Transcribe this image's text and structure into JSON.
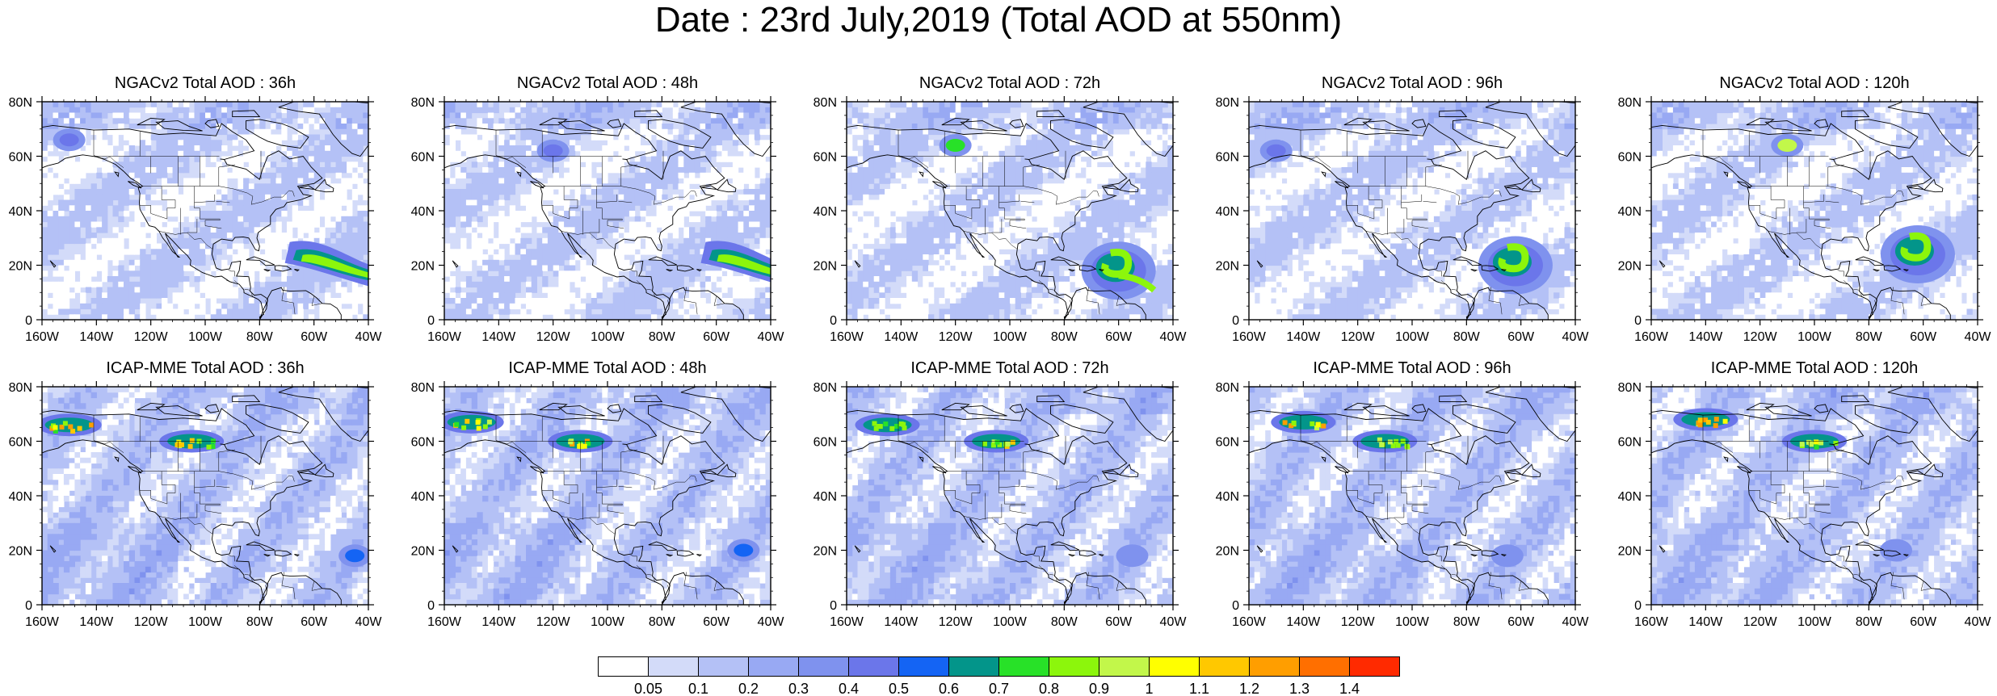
{
  "title": "Date : 23rd July,2019 (Total AOD at 550nm)",
  "lon_ticks": [
    "160W",
    "140W",
    "120W",
    "100W",
    "80W",
    "60W",
    "40W"
  ],
  "lat_ticks": [
    "0",
    "20N",
    "40N",
    "60N",
    "80N"
  ],
  "panels": [
    {
      "title": "NGACv2 Total AOD : 36h",
      "model": "NGACv2",
      "lead": "36h",
      "plumes": [
        {
          "lon": -150,
          "lat": 66,
          "aod": 0.45,
          "kind": "blob"
        },
        {
          "lon": -60,
          "lat": 22,
          "aod": 0.85,
          "kind": "band"
        }
      ]
    },
    {
      "title": "NGACv2 Total AOD : 48h",
      "model": "NGACv2",
      "lead": "48h",
      "plumes": [
        {
          "lon": -120,
          "lat": 62,
          "aod": 0.45,
          "kind": "blob"
        },
        {
          "lon": -55,
          "lat": 22,
          "aod": 0.85,
          "kind": "band"
        }
      ]
    },
    {
      "title": "NGACv2 Total AOD : 72h",
      "model": "NGACv2",
      "lead": "72h",
      "plumes": [
        {
          "lon": -120,
          "lat": 64,
          "aod": 0.75,
          "kind": "blob"
        },
        {
          "lon": -60,
          "lat": 18,
          "aod": 0.85,
          "kind": "hook"
        }
      ]
    },
    {
      "title": "NGACv2 Total AOD : 96h",
      "model": "NGACv2",
      "lead": "96h",
      "plumes": [
        {
          "lon": -150,
          "lat": 62,
          "aod": 0.45,
          "kind": "blob"
        },
        {
          "lon": -62,
          "lat": 20,
          "aod": 0.85,
          "kind": "swirl"
        }
      ]
    },
    {
      "title": "NGACv2 Total AOD : 120h",
      "model": "NGACv2",
      "lead": "120h",
      "plumes": [
        {
          "lon": -110,
          "lat": 64,
          "aod": 0.95,
          "kind": "blob"
        },
        {
          "lon": -62,
          "lat": 24,
          "aod": 0.8,
          "kind": "swirl"
        }
      ]
    },
    {
      "title": "ICAP-MME Total AOD : 36h",
      "model": "ICAP-MME",
      "lead": "36h",
      "plumes": [
        {
          "lon": -150,
          "lat": 66,
          "aod": 1.3,
          "kind": "fire"
        },
        {
          "lon": -105,
          "lat": 60,
          "aod": 1.2,
          "kind": "fire"
        },
        {
          "lon": -45,
          "lat": 18,
          "aod": 0.5,
          "kind": "blob"
        }
      ]
    },
    {
      "title": "ICAP-MME Total AOD : 48h",
      "model": "ICAP-MME",
      "lead": "48h",
      "plumes": [
        {
          "lon": -150,
          "lat": 67,
          "aod": 1.3,
          "kind": "fire"
        },
        {
          "lon": -110,
          "lat": 60,
          "aod": 1.3,
          "kind": "fire"
        },
        {
          "lon": -50,
          "lat": 20,
          "aod": 0.5,
          "kind": "blob"
        }
      ]
    },
    {
      "title": "ICAP-MME Total AOD : 72h",
      "model": "ICAP-MME",
      "lead": "72h",
      "plumes": [
        {
          "lon": -145,
          "lat": 66,
          "aod": 0.9,
          "kind": "fire"
        },
        {
          "lon": -105,
          "lat": 60,
          "aod": 1.2,
          "kind": "fire"
        },
        {
          "lon": -55,
          "lat": 18,
          "aod": 0.35,
          "kind": "blob"
        }
      ]
    },
    {
      "title": "ICAP-MME Total AOD : 96h",
      "model": "ICAP-MME",
      "lead": "96h",
      "plumes": [
        {
          "lon": -140,
          "lat": 67,
          "aod": 1.3,
          "kind": "fire"
        },
        {
          "lon": -110,
          "lat": 60,
          "aod": 1.0,
          "kind": "fire"
        },
        {
          "lon": -65,
          "lat": 18,
          "aod": 0.35,
          "kind": "blob"
        }
      ]
    },
    {
      "title": "ICAP-MME Total AOD : 120h",
      "model": "ICAP-MME",
      "lead": "120h",
      "plumes": [
        {
          "lon": -140,
          "lat": 68,
          "aod": 1.3,
          "kind": "fire"
        },
        {
          "lon": -100,
          "lat": 60,
          "aod": 1.1,
          "kind": "fire"
        },
        {
          "lon": -70,
          "lat": 20,
          "aod": 0.3,
          "kind": "blob"
        }
      ]
    }
  ],
  "colorbar": {
    "labels": [
      "0.05",
      "0.1",
      "0.2",
      "0.3",
      "0.4",
      "0.5",
      "0.6",
      "0.7",
      "0.8",
      "0.9",
      "1",
      "1.1",
      "1.2",
      "1.3",
      "1.4"
    ],
    "colors": [
      "#ffffff",
      "#d3dbf9",
      "#b4c1f6",
      "#98a9f3",
      "#7f92ee",
      "#6b76ea",
      "#1464f4",
      "#03958a",
      "#28e128",
      "#8cf60c",
      "#c2f74a",
      "#ffff00",
      "#ffc800",
      "#ff9e00",
      "#ff6f00",
      "#ff2a00"
    ]
  }
}
